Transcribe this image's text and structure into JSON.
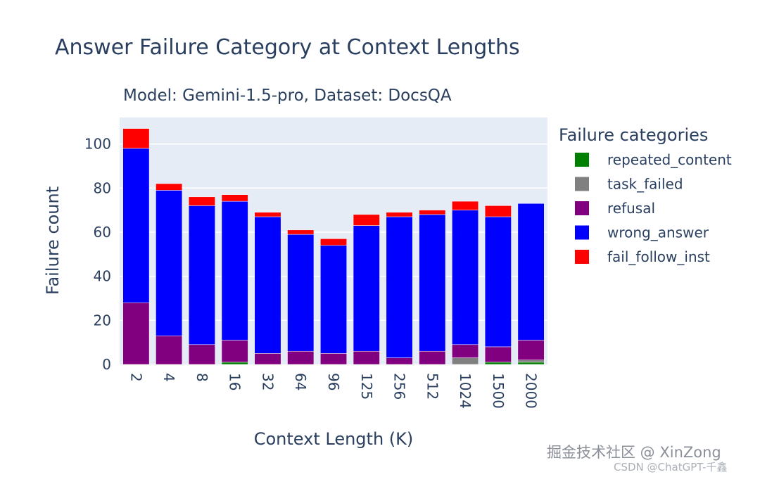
{
  "watermark": {
    "primary": "掘金技术社区 @ XinZong",
    "secondary": "CSDN @ChatGPT-千鑫"
  },
  "chart_data": {
    "type": "bar",
    "stacked": true,
    "title": "Answer Failure Category at Context Lengths",
    "subtitle": "Model: Gemini-1.5-pro, Dataset: DocsQA",
    "xlabel": "Context Length (K)",
    "ylabel": "Failure count",
    "ylim": [
      0,
      112
    ],
    "yticks": [
      0,
      20,
      40,
      60,
      80,
      100
    ],
    "grid": true,
    "legend_title": "Failure categories",
    "legend_position": "right",
    "categories": [
      "2",
      "4",
      "8",
      "16",
      "32",
      "64",
      "96",
      "125",
      "256",
      "512",
      "1024",
      "1500",
      "2000"
    ],
    "series": [
      {
        "name": "repeated_content",
        "color": "#008000",
        "values": [
          0,
          0,
          0,
          1,
          0,
          0,
          0,
          0,
          0,
          0,
          0,
          1,
          1
        ]
      },
      {
        "name": "task_failed",
        "color": "#808080",
        "values": [
          0,
          0,
          0,
          0,
          0,
          0,
          0,
          0,
          0,
          0,
          3,
          0,
          1
        ]
      },
      {
        "name": "refusal",
        "color": "#800080",
        "values": [
          28,
          13,
          9,
          10,
          5,
          6,
          5,
          6,
          3,
          6,
          6,
          7,
          9
        ]
      },
      {
        "name": "wrong_answer",
        "color": "#0000ff",
        "values": [
          70,
          66,
          63,
          63,
          62,
          53,
          49,
          57,
          64,
          62,
          61,
          59,
          62
        ]
      },
      {
        "name": "fail_follow_inst",
        "color": "#ff0000",
        "values": [
          9,
          3,
          4,
          3,
          2,
          2,
          3,
          5,
          2,
          2,
          4,
          5,
          0
        ]
      }
    ]
  }
}
